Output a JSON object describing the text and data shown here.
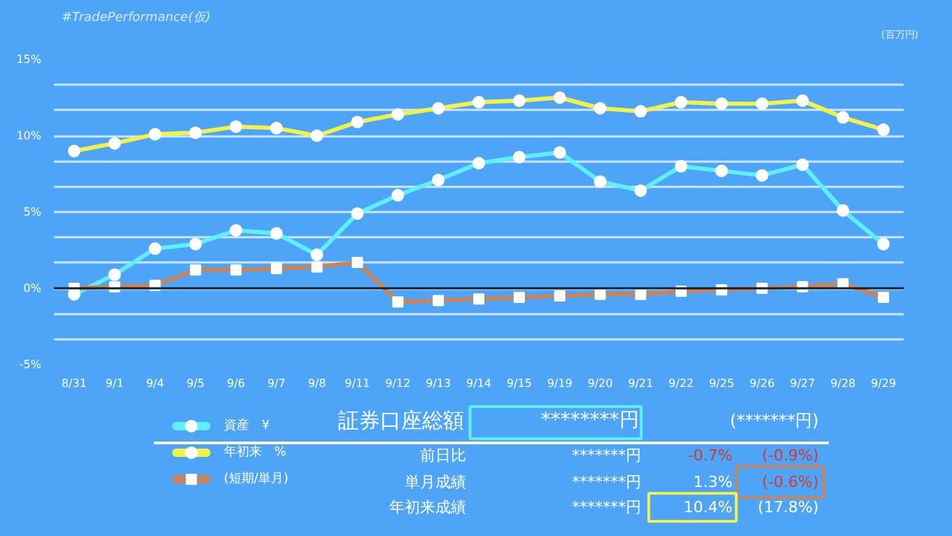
{
  "chart_data": {
    "type": "line",
    "title": "#TradePerformance(仮)",
    "categories": [
      "8/31",
      "9/1",
      "9/4",
      "9/5",
      "9/6",
      "9/7",
      "9/8",
      "9/11",
      "9/12",
      "9/13",
      "9/14",
      "9/15",
      "9/19",
      "9/20",
      "9/21",
      "9/22",
      "9/25",
      "9/26",
      "9/27",
      "9/28",
      "9/29"
    ],
    "series": [
      {
        "name": "資産　¥",
        "color": "#5ff0ff",
        "marker": "circle",
        "values": [
          -0.4,
          0.9,
          2.6,
          2.9,
          3.8,
          3.6,
          2.2,
          4.9,
          6.1,
          7.1,
          8.2,
          8.6,
          8.9,
          7.0,
          6.4,
          8.0,
          7.7,
          7.4,
          8.1,
          5.1,
          2.9
        ]
      },
      {
        "name": "年初来　%",
        "color": "#f2f24a",
        "marker": "circle",
        "values": [
          9.0,
          9.5,
          10.1,
          10.2,
          10.6,
          10.5,
          10.0,
          10.9,
          11.4,
          11.8,
          12.2,
          12.3,
          12.5,
          11.8,
          11.6,
          12.2,
          12.1,
          12.1,
          12.3,
          11.2,
          10.4
        ]
      },
      {
        "name": "(短期/単月)",
        "color": "#c9845a",
        "marker": "square",
        "values": [
          0.0,
          0.1,
          0.2,
          1.2,
          1.2,
          1.3,
          1.4,
          1.7,
          -0.9,
          -0.8,
          -0.7,
          -0.6,
          -0.5,
          -0.4,
          -0.4,
          -0.2,
          -0.1,
          0.0,
          0.1,
          0.3,
          -0.6
        ]
      }
    ],
    "ylim": [
      -5,
      15
    ],
    "yticks": [
      {
        "value": -5,
        "label": "-5%"
      },
      {
        "value": -3.3333,
        "label": null
      },
      {
        "value": -1.6667,
        "label": null
      },
      {
        "value": 0,
        "label": "0%"
      },
      {
        "value": 1.6667,
        "label": null
      },
      {
        "value": 3.3333,
        "label": null
      },
      {
        "value": 5,
        "label": "5%"
      },
      {
        "value": 6.6667,
        "label": null
      },
      {
        "value": 8.3333,
        "label": null
      },
      {
        "value": 10,
        "label": "10%"
      },
      {
        "value": 11.6667,
        "label": null
      },
      {
        "value": 13.3333,
        "label": null
      },
      {
        "value": 15,
        "label": "15%"
      }
    ],
    "grid": "y",
    "legend": "bottom left",
    "line_style": "solid",
    "ref_lines": [
      {
        "axis": "y",
        "value": 0,
        "color": "#10202c"
      }
    ],
    "annotations": [
      "(百万円)",
      "証券口座総額",
      "********円",
      "(*******円)",
      "前日比",
      "*******円",
      "-0.7%",
      "(-0.9%)",
      "単月成績",
      "*******円",
      "1.3%",
      "(-0.6%)",
      "年初来成績",
      "*******円",
      "10.4%",
      "(17.8%)"
    ]
  }
}
